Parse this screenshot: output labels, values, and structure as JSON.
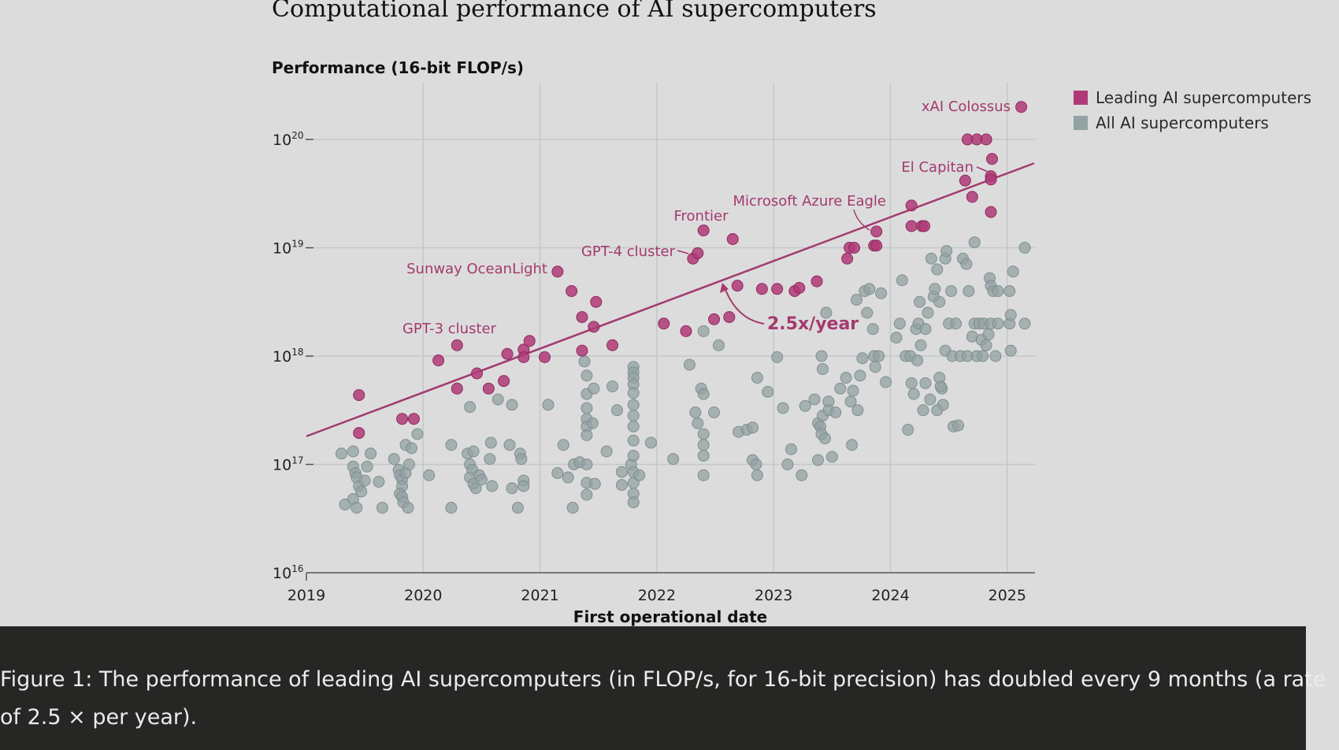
{
  "chart_data": {
    "type": "scatter",
    "title": "Computational performance of AI supercomputers",
    "ylabel": "Performance (16-bit FLOP/s)",
    "xlabel": "First operational date",
    "x_ticks": [
      "2019",
      "2020",
      "2021",
      "2022",
      "2023",
      "2024",
      "2025"
    ],
    "y_ticks": [
      {
        "base": "10",
        "exp": "16",
        "value": 16
      },
      {
        "base": "10",
        "exp": "17",
        "value": 17
      },
      {
        "base": "10",
        "exp": "18",
        "value": 18
      },
      {
        "base": "10",
        "exp": "19",
        "value": 19
      },
      {
        "base": "10",
        "exp": "20",
        "value": 20
      }
    ],
    "xlim": [
      2019,
      2025.25
    ],
    "ylim_log10": [
      16,
      20.5
    ],
    "y_scale": "log",
    "grid": true,
    "legend_position": "top-right",
    "series": [
      {
        "name": "Leading AI supercomputers",
        "color": "#b03a78",
        "points": [
          [
            2019.45,
            17.64
          ],
          [
            2019.45,
            17.29
          ],
          [
            2019.82,
            17.42
          ],
          [
            2019.92,
            17.42
          ],
          [
            2020.13,
            17.96
          ],
          [
            2020.29,
            18.1
          ],
          [
            2020.29,
            17.7
          ],
          [
            2020.46,
            17.84
          ],
          [
            2020.56,
            17.7
          ],
          [
            2020.69,
            17.77
          ],
          [
            2020.72,
            18.02
          ],
          [
            2020.86,
            18.06
          ],
          [
            2020.86,
            17.99
          ],
          [
            2020.91,
            18.14
          ],
          [
            2021.04,
            17.99
          ],
          [
            2021.15,
            18.78
          ],
          [
            2021.27,
            18.6
          ],
          [
            2021.36,
            18.36
          ],
          [
            2021.36,
            18.05
          ],
          [
            2021.46,
            18.27
          ],
          [
            2021.48,
            18.5
          ],
          [
            2021.62,
            18.1
          ],
          [
            2022.06,
            18.3
          ],
          [
            2022.25,
            18.23
          ],
          [
            2022.31,
            18.9
          ],
          [
            2022.35,
            18.95
          ],
          [
            2022.4,
            19.16
          ],
          [
            2022.49,
            18.34
          ],
          [
            2022.62,
            18.36
          ],
          [
            2022.65,
            19.08
          ],
          [
            2022.69,
            18.65
          ],
          [
            2022.9,
            18.62
          ],
          [
            2023.03,
            18.62
          ],
          [
            2023.18,
            18.6
          ],
          [
            2023.22,
            18.63
          ],
          [
            2023.37,
            18.69
          ],
          [
            2023.63,
            18.9
          ],
          [
            2023.65,
            19.0
          ],
          [
            2023.69,
            19.0
          ],
          [
            2023.86,
            19.02
          ],
          [
            2023.88,
            19.02
          ],
          [
            2023.88,
            19.15
          ],
          [
            2024.18,
            19.39
          ],
          [
            2024.18,
            19.2
          ],
          [
            2024.27,
            19.2
          ],
          [
            2024.29,
            19.2
          ],
          [
            2024.64,
            19.62
          ],
          [
            2024.66,
            20.0
          ],
          [
            2024.74,
            20.0
          ],
          [
            2024.82,
            20.0
          ],
          [
            2024.7,
            19.47
          ],
          [
            2024.86,
            19.66
          ],
          [
            2024.86,
            19.63
          ],
          [
            2024.87,
            19.82
          ],
          [
            2024.86,
            19.33
          ],
          [
            2025.12,
            20.3
          ]
        ]
      },
      {
        "name": "All AI supercomputers",
        "color": "#93a2a3",
        "points": [
          [
            2019.3,
            17.1
          ],
          [
            2019.4,
            17.12
          ],
          [
            2019.4,
            16.98
          ],
          [
            2019.42,
            16.92
          ],
          [
            2019.43,
            16.88
          ],
          [
            2019.45,
            16.8
          ],
          [
            2019.47,
            16.75
          ],
          [
            2019.4,
            16.68
          ],
          [
            2019.33,
            16.63
          ],
          [
            2019.43,
            16.6
          ],
          [
            2019.52,
            16.98
          ],
          [
            2019.5,
            16.85
          ],
          [
            2019.55,
            17.1
          ],
          [
            2019.62,
            16.84
          ],
          [
            2019.65,
            16.6
          ],
          [
            2019.75,
            17.05
          ],
          [
            2019.79,
            16.95
          ],
          [
            2019.8,
            16.9
          ],
          [
            2019.82,
            16.86
          ],
          [
            2019.82,
            16.8
          ],
          [
            2019.8,
            16.73
          ],
          [
            2019.82,
            16.7
          ],
          [
            2019.83,
            16.65
          ],
          [
            2019.87,
            16.6
          ],
          [
            2019.85,
            16.92
          ],
          [
            2019.88,
            17.0
          ],
          [
            2019.85,
            17.18
          ],
          [
            2019.9,
            17.15
          ],
          [
            2019.95,
            17.28
          ],
          [
            2020.05,
            16.9
          ],
          [
            2020.24,
            17.18
          ],
          [
            2020.38,
            17.1
          ],
          [
            2020.43,
            17.12
          ],
          [
            2020.4,
            17.53
          ],
          [
            2020.4,
            17.0
          ],
          [
            2020.42,
            16.95
          ],
          [
            2020.4,
            16.88
          ],
          [
            2020.43,
            16.82
          ],
          [
            2020.45,
            16.78
          ],
          [
            2020.48,
            16.9
          ],
          [
            2020.5,
            16.86
          ],
          [
            2020.57,
            17.05
          ],
          [
            2020.58,
            17.2
          ],
          [
            2020.59,
            16.8
          ],
          [
            2020.76,
            16.78
          ],
          [
            2020.74,
            17.18
          ],
          [
            2020.83,
            17.1
          ],
          [
            2020.81,
            16.6
          ],
          [
            2020.84,
            17.05
          ],
          [
            2020.86,
            16.85
          ],
          [
            2020.86,
            16.8
          ],
          [
            2020.24,
            16.6
          ],
          [
            2020.64,
            17.6
          ],
          [
            2020.76,
            17.55
          ],
          [
            2021.07,
            17.55
          ],
          [
            2021.15,
            16.92
          ],
          [
            2021.2,
            17.18
          ],
          [
            2021.24,
            16.88
          ],
          [
            2021.28,
            16.6
          ],
          [
            2021.29,
            17.0
          ],
          [
            2021.34,
            17.02
          ],
          [
            2021.4,
            17.0
          ],
          [
            2021.4,
            16.83
          ],
          [
            2021.4,
            16.72
          ],
          [
            2021.38,
            17.95
          ],
          [
            2021.4,
            17.82
          ],
          [
            2021.4,
            17.65
          ],
          [
            2021.4,
            17.52
          ],
          [
            2021.4,
            17.42
          ],
          [
            2021.4,
            17.35
          ],
          [
            2021.4,
            17.27
          ],
          [
            2021.46,
            17.7
          ],
          [
            2021.45,
            17.38
          ],
          [
            2021.47,
            16.82
          ],
          [
            2021.57,
            17.12
          ],
          [
            2021.62,
            17.72
          ],
          [
            2021.66,
            17.5
          ],
          [
            2021.7,
            16.93
          ],
          [
            2021.7,
            16.81
          ],
          [
            2021.78,
            17.0
          ],
          [
            2021.8,
            17.9
          ],
          [
            2021.8,
            17.85
          ],
          [
            2021.8,
            17.8
          ],
          [
            2021.8,
            17.74
          ],
          [
            2021.8,
            17.66
          ],
          [
            2021.8,
            17.55
          ],
          [
            2021.8,
            17.45
          ],
          [
            2021.8,
            17.35
          ],
          [
            2021.8,
            17.22
          ],
          [
            2021.8,
            17.08
          ],
          [
            2021.8,
            16.93
          ],
          [
            2021.8,
            16.83
          ],
          [
            2021.8,
            16.73
          ],
          [
            2021.8,
            16.65
          ],
          [
            2021.85,
            16.9
          ],
          [
            2021.95,
            17.2
          ],
          [
            2022.14,
            17.05
          ],
          [
            2022.28,
            17.92
          ],
          [
            2022.33,
            17.48
          ],
          [
            2022.35,
            17.38
          ],
          [
            2022.38,
            17.7
          ],
          [
            2022.4,
            17.65
          ],
          [
            2022.4,
            17.08
          ],
          [
            2022.4,
            17.28
          ],
          [
            2022.4,
            16.9
          ],
          [
            2022.4,
            17.18
          ],
          [
            2022.49,
            17.48
          ],
          [
            2022.53,
            18.1
          ],
          [
            2022.4,
            18.23
          ],
          [
            2022.7,
            17.3
          ],
          [
            2022.77,
            17.32
          ],
          [
            2022.82,
            17.34
          ],
          [
            2022.82,
            17.04
          ],
          [
            2022.85,
            17.0
          ],
          [
            2022.86,
            17.8
          ],
          [
            2022.86,
            16.9
          ],
          [
            2022.95,
            17.67
          ],
          [
            2023.03,
            17.99
          ],
          [
            2023.08,
            17.52
          ],
          [
            2023.15,
            17.14
          ],
          [
            2023.12,
            17.0
          ],
          [
            2023.24,
            16.9
          ],
          [
            2023.27,
            17.54
          ],
          [
            2023.35,
            17.6
          ],
          [
            2023.38,
            17.38
          ],
          [
            2023.4,
            17.35
          ],
          [
            2023.41,
            17.28
          ],
          [
            2023.38,
            17.04
          ],
          [
            2023.42,
            17.45
          ],
          [
            2023.44,
            17.24
          ],
          [
            2023.47,
            17.58
          ],
          [
            2023.47,
            17.5
          ],
          [
            2023.5,
            17.07
          ],
          [
            2023.53,
            17.48
          ],
          [
            2023.57,
            17.7
          ],
          [
            2023.62,
            17.8
          ],
          [
            2023.66,
            17.58
          ],
          [
            2023.67,
            17.18
          ],
          [
            2023.68,
            17.68
          ],
          [
            2023.41,
            18.0
          ],
          [
            2023.45,
            18.4
          ],
          [
            2023.42,
            17.88
          ],
          [
            2023.71,
            18.52
          ],
          [
            2023.78,
            18.6
          ],
          [
            2023.82,
            18.62
          ],
          [
            2023.8,
            18.4
          ],
          [
            2023.85,
            18.25
          ],
          [
            2023.86,
            18.0
          ],
          [
            2023.87,
            17.9
          ],
          [
            2023.9,
            18.0
          ],
          [
            2023.74,
            17.82
          ],
          [
            2023.76,
            17.98
          ],
          [
            2023.92,
            18.58
          ],
          [
            2023.96,
            17.76
          ],
          [
            2024.05,
            18.17
          ],
          [
            2024.08,
            18.3
          ],
          [
            2024.1,
            18.7
          ],
          [
            2024.13,
            18.0
          ],
          [
            2024.15,
            17.32
          ],
          [
            2024.17,
            18.0
          ],
          [
            2024.18,
            17.75
          ],
          [
            2024.2,
            17.65
          ],
          [
            2024.22,
            18.25
          ],
          [
            2024.25,
            18.5
          ],
          [
            2024.24,
            18.3
          ],
          [
            2024.26,
            18.1
          ],
          [
            2024.23,
            17.96
          ],
          [
            2024.28,
            17.5
          ],
          [
            2024.3,
            17.75
          ],
          [
            2024.3,
            18.25
          ],
          [
            2024.32,
            18.4
          ],
          [
            2024.35,
            18.9
          ],
          [
            2024.37,
            18.55
          ],
          [
            2024.38,
            18.62
          ],
          [
            2024.4,
            18.8
          ],
          [
            2024.42,
            18.5
          ],
          [
            2024.42,
            17.8
          ],
          [
            2024.44,
            17.7
          ],
          [
            2024.45,
            17.55
          ],
          [
            2024.47,
            18.05
          ],
          [
            2024.47,
            18.9
          ],
          [
            2024.48,
            18.97
          ],
          [
            2024.5,
            18.3
          ],
          [
            2024.52,
            18.6
          ],
          [
            2024.53,
            18.0
          ],
          [
            2024.54,
            17.35
          ],
          [
            2024.56,
            18.3
          ],
          [
            2024.58,
            17.36
          ],
          [
            2024.6,
            18.0
          ],
          [
            2024.62,
            18.9
          ],
          [
            2024.65,
            18.85
          ],
          [
            2024.66,
            18.0
          ],
          [
            2024.67,
            18.6
          ],
          [
            2024.7,
            18.18
          ],
          [
            2024.72,
            18.3
          ],
          [
            2024.74,
            18.0
          ],
          [
            2024.76,
            18.3
          ],
          [
            2024.78,
            18.15
          ],
          [
            2024.79,
            18.0
          ],
          [
            2024.8,
            18.3
          ],
          [
            2024.82,
            18.1
          ],
          [
            2024.84,
            18.2
          ],
          [
            2024.86,
            18.3
          ],
          [
            2024.85,
            18.72
          ],
          [
            2024.86,
            18.65
          ],
          [
            2024.88,
            18.6
          ],
          [
            2024.9,
            18.0
          ],
          [
            2024.92,
            18.3
          ],
          [
            2024.92,
            18.6
          ],
          [
            2025.02,
            18.6
          ],
          [
            2025.02,
            18.3
          ],
          [
            2025.03,
            18.05
          ],
          [
            2025.05,
            18.78
          ],
          [
            2025.03,
            18.38
          ],
          [
            2025.15,
            18.3
          ],
          [
            2025.15,
            19.0
          ],
          [
            2024.4,
            17.5
          ],
          [
            2024.43,
            17.72
          ],
          [
            2024.34,
            17.6
          ],
          [
            2023.72,
            17.5
          ],
          [
            2024.72,
            19.05
          ]
        ]
      }
    ],
    "trend": {
      "label": "2.5x/year",
      "x": [
        2019,
        2025.23
      ],
      "log10_y": [
        17.26,
        19.78
      ]
    },
    "annotations": [
      {
        "label": "xAI Colossus",
        "x": 2025.12,
        "y": 20.3
      },
      {
        "label": "El Capitan",
        "x": 2024.86,
        "y": 19.66
      },
      {
        "label": "Microsoft Azure Eagle",
        "x": 2023.88,
        "y": 19.15
      },
      {
        "label": "Frontier",
        "x": 2022.4,
        "y": 19.16
      },
      {
        "label": "GPT-4 cluster",
        "x": 2022.35,
        "y": 18.95
      },
      {
        "label": "Sunway OceanLight",
        "x": 2021.15,
        "y": 18.78
      },
      {
        "label": "GPT-3 cluster",
        "x": 2020.29,
        "y": 18.1
      }
    ]
  },
  "legend": [
    {
      "label": "Leading AI supercomputers",
      "color": "#b03a78"
    },
    {
      "label": "All AI supercomputers",
      "color": "#93a2a3"
    }
  ],
  "caption": {
    "text": "Figure 1: The performance of leading AI supercomputers (in FLOP/s, for 16-bit precision) has doubled every 9 months (a rate of 2.5 × per year)."
  }
}
